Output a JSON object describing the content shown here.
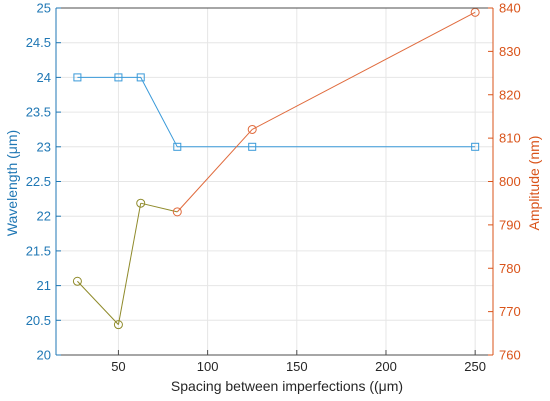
{
  "chart_data": {
    "type": "line",
    "xlabel": "Spacing between imperfections ((μm)",
    "ylabel_left": "Wavelength (μm)",
    "ylabel_right": "Amplitude (nm)",
    "xlim": [
      15,
      260
    ],
    "ylim_left": [
      20,
      25
    ],
    "ylim_right": [
      760,
      840
    ],
    "x_ticks": [
      50,
      100,
      150,
      200,
      250
    ],
    "y_left_ticks": [
      20,
      20.5,
      21,
      21.5,
      22,
      22.5,
      23,
      23.5,
      24,
      24.5,
      25
    ],
    "y_right_ticks": [
      760,
      770,
      780,
      790,
      800,
      810,
      820,
      830,
      840
    ],
    "grid": true,
    "colors": {
      "left_axis": "#1f77b4",
      "left_series": "#3a9ad9",
      "right_axis": "#d95319",
      "right_series_segment_1": "#8f8a2a",
      "right_series_segment_2": "#e06a3c",
      "grid": "#e6e6e6",
      "axis_box": "#4d4d4d"
    },
    "series": [
      {
        "axis": "left",
        "marker": "square",
        "x": [
          27,
          50,
          62.5,
          83,
          125,
          250
        ],
        "y": [
          24,
          24,
          24,
          23,
          23,
          23
        ]
      },
      {
        "axis": "right",
        "marker": "circle",
        "x": [
          27,
          50,
          62.5,
          83,
          125,
          250
        ],
        "y": [
          777,
          767,
          795,
          793,
          812,
          839
        ]
      }
    ]
  }
}
